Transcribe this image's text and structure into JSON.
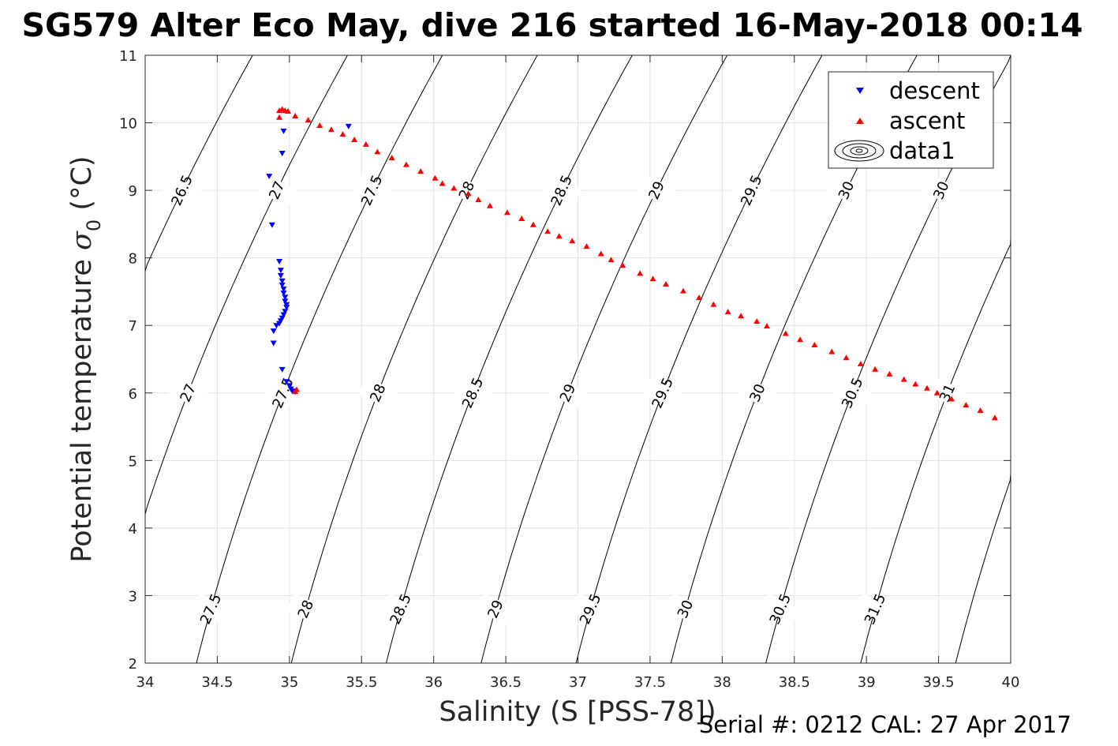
{
  "chart_data": {
    "type": "scatter",
    "title": "SG579 Alter Eco May, dive 216 started 16-May-2018 00:14",
    "xlabel": "Salinity (S [PSS-78])",
    "ylabel_main": "Potential temperature ",
    "ylabel_symbol": "σ",
    "ylabel_sub": "0",
    "ylabel_unit": " (°C)",
    "xlim": [
      34,
      40
    ],
    "ylim": [
      2,
      11
    ],
    "xticks": [
      34,
      34.5,
      35,
      35.5,
      36,
      36.5,
      37,
      37.5,
      38,
      38.5,
      39,
      39.5,
      40
    ],
    "yticks": [
      2,
      3,
      4,
      5,
      6,
      7,
      8,
      9,
      10,
      11
    ],
    "grid": true,
    "legend_position": "top-right",
    "legend": [
      "descent",
      "ascent",
      "data1"
    ],
    "series": [
      {
        "name": "descent",
        "marker": "triangle-down",
        "color": "#0000ff",
        "points": [
          [
            35.41,
            9.95
          ],
          [
            34.96,
            9.88
          ],
          [
            34.95,
            9.55
          ],
          [
            34.86,
            9.21
          ],
          [
            34.88,
            8.49
          ],
          [
            34.93,
            7.95
          ],
          [
            34.94,
            7.82
          ],
          [
            34.94,
            7.74
          ],
          [
            34.95,
            7.66
          ],
          [
            34.95,
            7.6
          ],
          [
            34.96,
            7.54
          ],
          [
            34.96,
            7.48
          ],
          [
            34.97,
            7.42
          ],
          [
            34.97,
            7.36
          ],
          [
            34.98,
            7.31
          ],
          [
            34.98,
            7.27
          ],
          [
            34.97,
            7.21
          ],
          [
            34.96,
            7.16
          ],
          [
            34.95,
            7.11
          ],
          [
            34.94,
            7.07
          ],
          [
            34.93,
            7.03
          ],
          [
            34.91,
            7.0
          ],
          [
            34.89,
            6.92
          ],
          [
            34.89,
            6.74
          ],
          [
            34.95,
            6.35
          ],
          [
            34.98,
            6.17
          ],
          [
            35.0,
            6.11
          ],
          [
            35.01,
            6.06
          ],
          [
            35.02,
            6.03
          ],
          [
            35.04,
            6.02
          ]
        ]
      },
      {
        "name": "ascent",
        "marker": "triangle-up",
        "color": "#ff0000",
        "points": [
          [
            34.93,
            10.08
          ],
          [
            34.93,
            10.18
          ],
          [
            34.95,
            10.2
          ],
          [
            34.97,
            10.18
          ],
          [
            34.99,
            10.17
          ],
          [
            35.05,
            6.05
          ],
          [
            35.04,
            6.02
          ],
          [
            35.04,
            10.1
          ],
          [
            35.13,
            10.04
          ],
          [
            35.21,
            9.96
          ],
          [
            35.29,
            9.9
          ],
          [
            35.37,
            9.83
          ],
          [
            35.45,
            9.75
          ],
          [
            35.53,
            9.68
          ],
          [
            35.61,
            9.57
          ],
          [
            35.71,
            9.48
          ],
          [
            35.81,
            9.38
          ],
          [
            35.91,
            9.28
          ],
          [
            36.01,
            9.18
          ],
          [
            36.06,
            9.1
          ],
          [
            36.14,
            9.03
          ],
          [
            36.24,
            8.95
          ],
          [
            36.31,
            8.86
          ],
          [
            36.39,
            8.77
          ],
          [
            36.51,
            8.67
          ],
          [
            36.61,
            8.58
          ],
          [
            36.69,
            8.49
          ],
          [
            36.79,
            8.39
          ],
          [
            36.87,
            8.32
          ],
          [
            36.96,
            8.25
          ],
          [
            37.06,
            8.17
          ],
          [
            37.16,
            8.06
          ],
          [
            37.23,
            7.97
          ],
          [
            37.31,
            7.89
          ],
          [
            37.43,
            7.77
          ],
          [
            37.52,
            7.69
          ],
          [
            37.61,
            7.61
          ],
          [
            37.73,
            7.51
          ],
          [
            37.84,
            7.41
          ],
          [
            37.94,
            7.31
          ],
          [
            38.04,
            7.2
          ],
          [
            38.13,
            7.14
          ],
          [
            38.24,
            7.06
          ],
          [
            38.31,
            6.99
          ],
          [
            38.44,
            6.88
          ],
          [
            38.54,
            6.79
          ],
          [
            38.64,
            6.71
          ],
          [
            38.76,
            6.61
          ],
          [
            38.86,
            6.52
          ],
          [
            38.96,
            6.43
          ],
          [
            39.06,
            6.35
          ],
          [
            39.16,
            6.28
          ],
          [
            39.26,
            6.2
          ],
          [
            39.34,
            6.13
          ],
          [
            39.42,
            6.07
          ],
          [
            39.49,
            6.0
          ],
          [
            39.59,
            5.91
          ],
          [
            39.69,
            5.82
          ],
          [
            39.79,
            5.74
          ],
          [
            39.89,
            5.63
          ]
        ]
      }
    ],
    "contours": {
      "levels": [
        26.5,
        27,
        27.5,
        28,
        28.5,
        29,
        29.5,
        30,
        30.5,
        31,
        31.5
      ],
      "labels_upper": [
        "26.5",
        "27",
        "27.5",
        "28",
        "28.5",
        "29",
        "29.5",
        "30",
        "30",
        "31"
      ],
      "labels_middle": [
        "27",
        "27.5",
        "28",
        "28.5",
        "29",
        "29.5",
        "30",
        "30.5",
        "31"
      ],
      "labels_lower": [
        "27.5",
        "28",
        "28.5",
        "29",
        "29.5",
        "30",
        "30.5",
        "31.5"
      ]
    },
    "footer": "Serial #: 0212  CAL: 27 Apr 2017"
  }
}
